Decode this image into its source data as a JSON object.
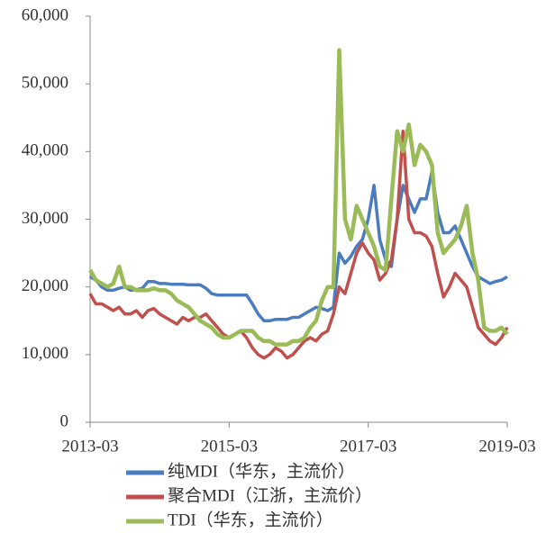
{
  "chart_data": {
    "type": "line",
    "x": [
      "2013-03",
      "2013-04",
      "2013-05",
      "2013-06",
      "2013-07",
      "2013-08",
      "2013-09",
      "2013-10",
      "2013-11",
      "2013-12",
      "2014-01",
      "2014-02",
      "2014-03",
      "2014-04",
      "2014-05",
      "2014-06",
      "2014-07",
      "2014-08",
      "2014-09",
      "2014-10",
      "2014-11",
      "2014-12",
      "2015-01",
      "2015-02",
      "2015-03",
      "2015-04",
      "2015-05",
      "2015-06",
      "2015-07",
      "2015-08",
      "2015-09",
      "2015-10",
      "2015-11",
      "2015-12",
      "2016-01",
      "2016-02",
      "2016-03",
      "2016-04",
      "2016-05",
      "2016-06",
      "2016-07",
      "2016-08",
      "2016-09",
      "2016-10",
      "2016-11",
      "2016-12",
      "2017-01",
      "2017-02",
      "2017-03",
      "2017-04",
      "2017-05",
      "2017-06",
      "2017-07",
      "2017-08",
      "2017-09",
      "2017-10",
      "2017-11",
      "2017-12",
      "2018-01",
      "2018-02",
      "2018-03",
      "2018-04",
      "2018-05",
      "2018-06",
      "2018-07",
      "2018-08",
      "2018-09",
      "2018-10",
      "2018-11",
      "2018-12",
      "2019-01",
      "2019-02",
      "2019-03"
    ],
    "series": [
      {
        "name": "纯MDI（华东，主流价）",
        "color": "#4a7dbf",
        "values": [
          21500,
          21000,
          20000,
          19500,
          19500,
          19800,
          20000,
          19500,
          19600,
          19800,
          20800,
          20800,
          20500,
          20500,
          20400,
          20400,
          20400,
          20300,
          20300,
          20300,
          19800,
          19000,
          18800,
          18800,
          18800,
          18800,
          18800,
          18800,
          17500,
          16000,
          15000,
          15000,
          15200,
          15200,
          15200,
          15500,
          15500,
          16000,
          16500,
          17000,
          16800,
          16500,
          17000,
          25000,
          23500,
          24500,
          26000,
          27000,
          30000,
          35000,
          27000,
          24000,
          23000,
          30000,
          35000,
          33000,
          31000,
          33000,
          33000,
          37000,
          31000,
          28000,
          28000,
          29000,
          27000,
          25000,
          23000,
          21500,
          21000,
          20500,
          20800,
          21000,
          21500
        ]
      },
      {
        "name": "聚合MDI（江浙，主流价）",
        "color": "#c0504d",
        "values": [
          19000,
          17500,
          17500,
          17000,
          16500,
          17000,
          16000,
          16000,
          16500,
          15500,
          16500,
          16800,
          16000,
          15500,
          15000,
          14500,
          15500,
          15000,
          15500,
          15500,
          16000,
          15000,
          14000,
          13000,
          12500,
          13000,
          13500,
          12500,
          11000,
          10000,
          9500,
          10000,
          11000,
          10500,
          9500,
          10000,
          11000,
          12000,
          12500,
          12000,
          13000,
          13500,
          16000,
          20000,
          19000,
          22000,
          25000,
          26500,
          25000,
          24000,
          21000,
          22000,
          24000,
          30000,
          43000,
          30000,
          28000,
          28000,
          27500,
          26000,
          22000,
          18500,
          20000,
          22000,
          21000,
          20000,
          17000,
          14000,
          13000,
          12000,
          11500,
          12500,
          14000
        ]
      },
      {
        "name": "TDI（华东，主流价）",
        "color": "#9bbb59",
        "values": [
          22500,
          21000,
          20500,
          20000,
          20500,
          23000,
          20000,
          20000,
          19500,
          19500,
          19500,
          19800,
          19500,
          19500,
          19000,
          18000,
          17500,
          17000,
          16000,
          15000,
          14500,
          14000,
          13000,
          12500,
          12500,
          13000,
          13500,
          13500,
          13500,
          12500,
          12000,
          12000,
          11500,
          11500,
          11500,
          12000,
          12000,
          12500,
          14000,
          15000,
          18000,
          20000,
          20000,
          55000,
          30000,
          27000,
          32000,
          30000,
          28000,
          26000,
          23000,
          22500,
          33000,
          43000,
          40000,
          44000,
          38000,
          41000,
          40000,
          38000,
          28000,
          25000,
          26000,
          27000,
          29000,
          32000,
          25000,
          21000,
          14000,
          13500,
          13500,
          14000,
          13000
        ]
      }
    ],
    "xticks": [
      "2013-03",
      "2015-03",
      "2017-03",
      "2019-03"
    ],
    "ylim": [
      0,
      60000
    ],
    "yticks": [
      0,
      {
        "value": 10000,
        "label": "10,000"
      },
      {
        "value": 20000,
        "label": "20,000"
      },
      {
        "value": 30000,
        "label": "30,000"
      },
      {
        "value": 40000,
        "label": "40,000"
      },
      {
        "value": 50000,
        "label": "50,000"
      },
      {
        "value": 60000,
        "label": "60,000"
      }
    ],
    "grid": false
  }
}
